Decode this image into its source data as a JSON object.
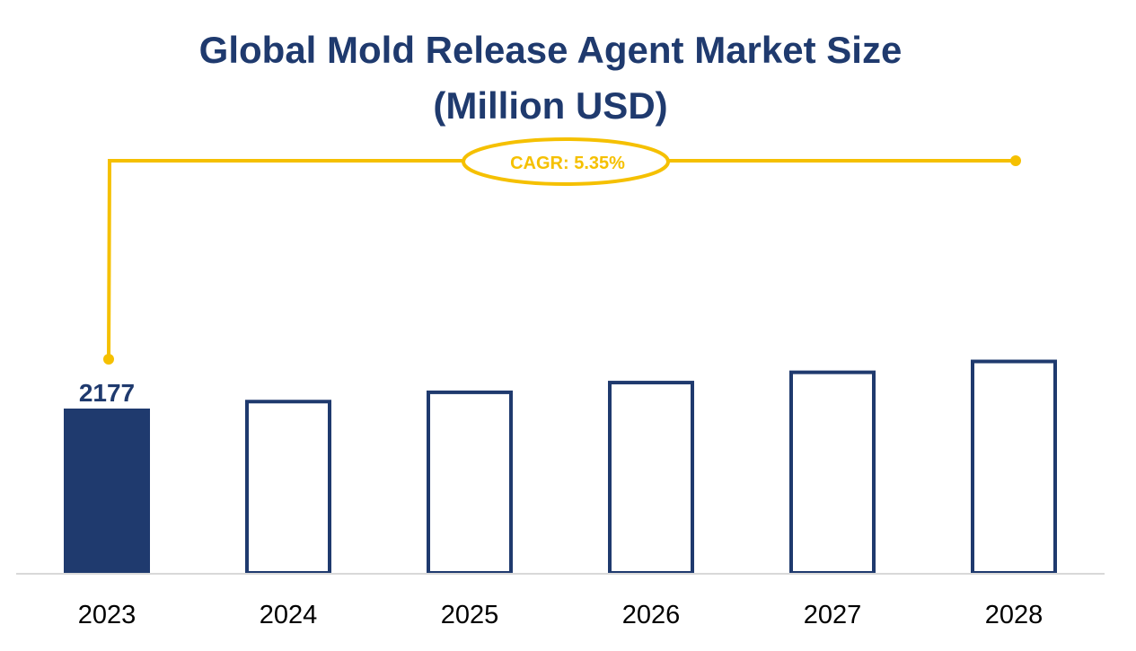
{
  "chart_data": {
    "type": "bar",
    "title": [
      "Global Mold Release Agent Market Size",
      "(Million USD)"
    ],
    "categories": [
      "2023",
      "2024",
      "2025",
      "2026",
      "2027",
      "2028"
    ],
    "values": [
      2177,
      2293,
      2416,
      2545,
      2681,
      2825
    ],
    "data_labels": [
      "2177",
      "",
      "",
      "",
      "",
      ""
    ],
    "highlighted_category": "2023",
    "annotation": "CAGR: 5.35%",
    "xlabel": "",
    "ylabel": "",
    "ylim": [
      0,
      2825
    ],
    "grid": false,
    "legend": "none",
    "colors": {
      "bar": "#1F3A6E",
      "highlight_fill": "#1F3A6E",
      "unfilled": "#FFFFFF",
      "annotation": "#F5C000",
      "baseline": "#D9D9D9"
    }
  }
}
